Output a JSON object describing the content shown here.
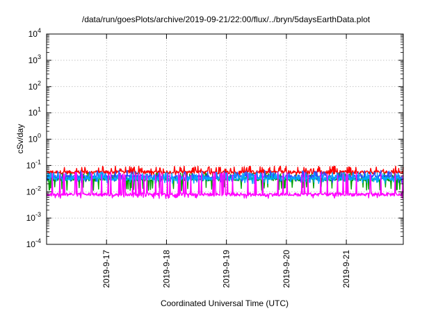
{
  "chart_data": {
    "type": "line",
    "title": "/data/run/goesPlots/archive/2019-09-21/22:00/flux/../bryn/5daysEarthData.plot",
    "xlabel": "Coordinated Universal Time (UTC)",
    "ylabel": "cSv/day",
    "yscale": "log",
    "ylim_exponents": [
      -4,
      4
    ],
    "y_tick_labels": [
      {
        "base": "10",
        "exp": "4"
      },
      {
        "base": "10",
        "exp": "3"
      },
      {
        "base": "10",
        "exp": "2"
      },
      {
        "base": "10",
        "exp": "1"
      },
      {
        "base": "10",
        "exp": "0"
      },
      {
        "base": "10",
        "exp": "-1"
      },
      {
        "base": "10",
        "exp": "-2"
      },
      {
        "base": "10",
        "exp": "-3"
      },
      {
        "base": "10",
        "exp": "-4"
      }
    ],
    "x_range_days": [
      16.0,
      21.95
    ],
    "x_tick_labels": [
      "2019-9-17",
      "2019-9-18",
      "2019-9-19",
      "2019-9-20",
      "2019-9-21"
    ],
    "x_tick_days": [
      17,
      18,
      19,
      20,
      21
    ],
    "grid": true,
    "series": [
      {
        "color": "#ff0000",
        "base": 0.056,
        "low": 0.04,
        "high": 0.095
      },
      {
        "color": "#00a000",
        "base": 0.03,
        "low": 0.011,
        "high": 0.052
      },
      {
        "color": "#2a4fff",
        "base": 0.038,
        "low": 0.022,
        "high": 0.065
      },
      {
        "color": "#00a8ff",
        "base": 0.032,
        "low": 0.02,
        "high": 0.055
      },
      {
        "color": "#ff00ff",
        "base": 0.008,
        "low": 0.0055,
        "high": 0.055
      }
    ]
  }
}
